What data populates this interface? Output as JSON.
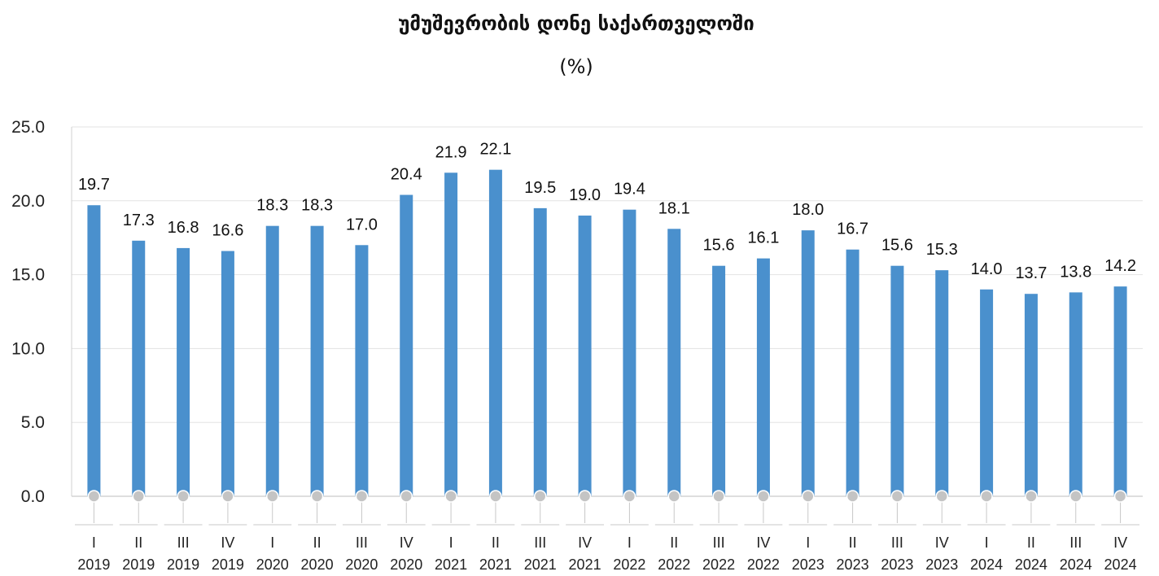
{
  "chart_data": {
    "type": "bar",
    "title": "უმუშევრობის დონე საქართველოში",
    "subtitle": "(%)",
    "xlabel": "",
    "ylabel": "",
    "ylim": [
      0,
      25
    ],
    "yticks": [
      "0.0",
      "5.0",
      "10.0",
      "15.0",
      "20.0",
      "25.0"
    ],
    "grid": true,
    "legend": "none",
    "bar_color": "#4a90cd",
    "categories": [
      {
        "quarter": "I",
        "year": "2019"
      },
      {
        "quarter": "II",
        "year": "2019"
      },
      {
        "quarter": "III",
        "year": "2019"
      },
      {
        "quarter": "IV",
        "year": "2019"
      },
      {
        "quarter": "I",
        "year": "2020"
      },
      {
        "quarter": "II",
        "year": "2020"
      },
      {
        "quarter": "III",
        "year": "2020"
      },
      {
        "quarter": "IV",
        "year": "2020"
      },
      {
        "quarter": "I",
        "year": "2021"
      },
      {
        "quarter": "II",
        "year": "2021"
      },
      {
        "quarter": "III",
        "year": "2021"
      },
      {
        "quarter": "IV",
        "year": "2021"
      },
      {
        "quarter": "I",
        "year": "2022"
      },
      {
        "quarter": "II",
        "year": "2022"
      },
      {
        "quarter": "III",
        "year": "2022"
      },
      {
        "quarter": "IV",
        "year": "2022"
      },
      {
        "quarter": "I",
        "year": "2023"
      },
      {
        "quarter": "II",
        "year": "2023"
      },
      {
        "quarter": "III",
        "year": "2023"
      },
      {
        "quarter": "IV",
        "year": "2023"
      },
      {
        "quarter": "I",
        "year": "2024"
      },
      {
        "quarter": "II",
        "year": "2024"
      },
      {
        "quarter": "III",
        "year": "2024"
      },
      {
        "quarter": "IV",
        "year": "2024"
      }
    ],
    "values": [
      19.7,
      17.3,
      16.8,
      16.6,
      18.3,
      18.3,
      17.0,
      20.4,
      21.9,
      22.1,
      19.5,
      19.0,
      19.4,
      18.1,
      15.6,
      16.1,
      18.0,
      16.7,
      15.6,
      15.3,
      14.0,
      13.7,
      13.8,
      14.2
    ],
    "value_labels": [
      "19.7",
      "17.3",
      "16.8",
      "16.6",
      "18.3",
      "18.3",
      "17.0",
      "20.4",
      "21.9",
      "22.1",
      "19.5",
      "19.0",
      "19.4",
      "18.1",
      "15.6",
      "16.1",
      "18.0",
      "16.7",
      "15.6",
      "15.3",
      "14.0",
      "13.7",
      "13.8",
      "14.2"
    ]
  }
}
